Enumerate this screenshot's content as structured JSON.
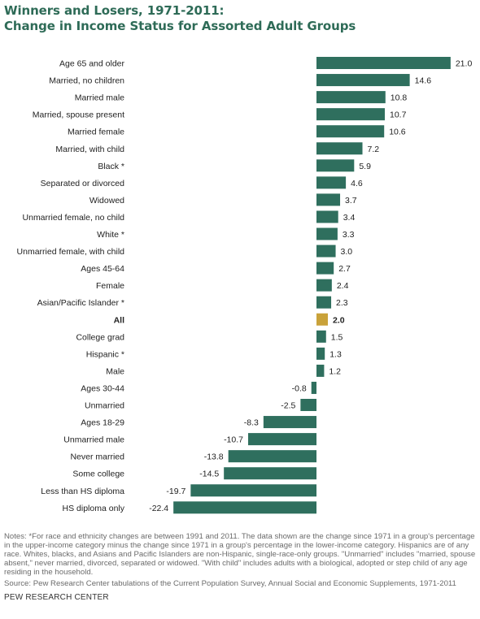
{
  "title_line1": "Winners and Losers, 1971-2011:",
  "title_line2": "Change in Income Status for Assorted Adult Groups",
  "notes": "Notes: *For race and ethnicity changes are between 1991 and 2011. The data shown are the change since 1971 in a group's percentage in the upper-income category minus the change since 1971 in a group's percentage in the lower-income category. Hispanics are of any race. Whites, blacks, and Asians and Pacific Islanders are non-Hispanic, single-race-only groups. \"Unmarried\" includes \"married, spouse absent,\" never married, divorced, separated or widowed. \"With child\" includes adults with a biological, adopted or step child of any age residing in the household.",
  "source": "Source: Pew Research Center tabulations of the Current Population Survey, Annual Social and Economic Supplements, 1971-2011",
  "footer": "PEW RESEARCH CENTER",
  "colors": {
    "title": "#2e6b57",
    "bar": "#2f6f5e",
    "highlight": "#c9a23a"
  },
  "chart_data": {
    "type": "bar",
    "orientation": "horizontal",
    "categories": [
      "Age 65 and older",
      "Married, no children",
      "Married male",
      "Married, spouse present",
      "Married female",
      "Married, with child",
      "Black *",
      "Separated or divorced",
      "Widowed",
      "Unmarried female, no child",
      "White *",
      "Unmarried female, with child",
      "Ages 45-64",
      "Female",
      "Asian/Pacific Islander *",
      "All",
      "College grad",
      "Hispanic *",
      "Male",
      "Ages 30-44",
      "Unmarried",
      "Ages 18-29",
      "Unmarried male",
      "Never married",
      "Some college",
      "Less than HS diploma",
      "HS diploma only"
    ],
    "values": [
      21.0,
      14.6,
      10.8,
      10.7,
      10.6,
      7.2,
      5.9,
      4.6,
      3.7,
      3.4,
      3.3,
      3.0,
      2.7,
      2.4,
      2.3,
      2.0,
      1.5,
      1.3,
      1.2,
      -0.8,
      -2.5,
      -8.3,
      -10.7,
      -13.8,
      -14.5,
      -19.7,
      -22.4
    ],
    "value_labels": [
      "21.0",
      "14.6",
      "10.8",
      "10.7",
      "10.6",
      "7.2",
      "5.9",
      "4.6",
      "3.7",
      "3.4",
      "3.3",
      "3.0",
      "2.7",
      "2.4",
      "2.3",
      "2.0",
      "1.5",
      "1.3",
      "1.2",
      "-0.8",
      "-2.5",
      "-8.3",
      "-10.7",
      "-13.8",
      "-14.5",
      "-19.7",
      "-22.4"
    ],
    "highlight": "All",
    "xlim": [
      -22.4,
      21.0
    ],
    "grid": false,
    "title": "Winners and Losers, 1971-2011: Change in Income Status for Assorted Adult Groups",
    "xlabel": "",
    "ylabel": ""
  }
}
